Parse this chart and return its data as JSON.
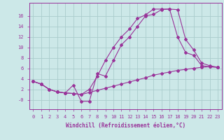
{
  "background_color": "#cce8e8",
  "grid_color": "#aacccc",
  "line_color": "#993399",
  "marker": "D",
  "markersize": 2,
  "linewidth": 0.8,
  "xlabel": "Windchill (Refroidissement éolien,°C)",
  "xlabel_fontsize": 5.5,
  "tick_fontsize": 5,
  "xlim": [
    -0.5,
    23.5
  ],
  "ylim": [
    -1.8,
    18.5
  ],
  "yticks": [
    0,
    2,
    4,
    6,
    8,
    10,
    12,
    14,
    16
  ],
  "ytick_labels": [
    "-0",
    "2",
    "4",
    "6",
    "8",
    "10",
    "12",
    "14",
    "16"
  ],
  "xticks": [
    0,
    1,
    2,
    3,
    4,
    5,
    6,
    7,
    8,
    9,
    10,
    11,
    12,
    13,
    14,
    15,
    16,
    17,
    18,
    19,
    20,
    21,
    22,
    23
  ],
  "line1_x": [
    0,
    1,
    2,
    3,
    4,
    5,
    6,
    7,
    8,
    9,
    10,
    11,
    12,
    13,
    14,
    15,
    16,
    17,
    18,
    19,
    20,
    21,
    22,
    23
  ],
  "line1_y": [
    3.5,
    3.0,
    2.0,
    1.5,
    1.3,
    1.2,
    1.0,
    1.4,
    1.8,
    2.2,
    2.6,
    3.0,
    3.4,
    3.8,
    4.2,
    4.7,
    5.0,
    5.3,
    5.6,
    5.8,
    6.0,
    6.2,
    6.3,
    6.2
  ],
  "line2_x": [
    0,
    1,
    2,
    3,
    4,
    5,
    6,
    7,
    8,
    9,
    10,
    11,
    12,
    13,
    14,
    15,
    16,
    17,
    18,
    19,
    20,
    21,
    22,
    23
  ],
  "line2_y": [
    3.5,
    3.0,
    2.0,
    1.5,
    1.3,
    2.8,
    -0.3,
    -0.3,
    5.0,
    4.5,
    7.5,
    10.5,
    12.0,
    14.0,
    16.0,
    16.3,
    17.2,
    17.3,
    12.0,
    9.0,
    8.5,
    6.5,
    6.3,
    6.2
  ],
  "line3_x": [
    0,
    1,
    2,
    3,
    4,
    5,
    6,
    7,
    8,
    9,
    10,
    11,
    12,
    13,
    14,
    15,
    16,
    17,
    18,
    19,
    20,
    21,
    22,
    23
  ],
  "line3_y": [
    3.5,
    3.0,
    2.0,
    1.5,
    1.3,
    1.2,
    1.0,
    2.0,
    4.5,
    7.5,
    10.0,
    12.0,
    13.5,
    15.5,
    16.2,
    17.3,
    17.3,
    17.3,
    17.2,
    11.5,
    9.5,
    7.0,
    6.5,
    6.2
  ]
}
